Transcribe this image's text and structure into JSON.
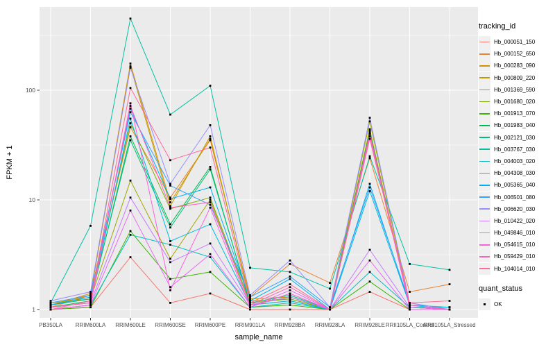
{
  "figure": {
    "background": "#ffffff",
    "panel_bg": "#ebebeb",
    "grid_color": "#ffffff",
    "axis_text_color": "#4d4d4d",
    "tick_color": "#333333",
    "marker_color": "#000000"
  },
  "chart_data": {
    "type": "line",
    "title": "",
    "xlabel": "sample_name",
    "ylabel": "FPKM + 1",
    "y_scale": "log10",
    "y_ticks": [
      1,
      10,
      100
    ],
    "y_tick_labels": [
      "1",
      "10",
      "100"
    ],
    "y_minor": [
      3.162,
      31.62,
      316.2
    ],
    "ylim": [
      0.84,
      575
    ],
    "grid": true,
    "legend_position": "right",
    "legend_title": "tracking_id",
    "legend2_title": "quant_status",
    "legend2_items": [
      {
        "label": "OK",
        "shape": "black-square"
      }
    ],
    "marker": "black-square",
    "categories": [
      "PB350LA",
      "RRIM600LA",
      "RRIM600LE",
      "RRIM600SE",
      "RRIM600PE",
      "RRIM901LA",
      "RRIM928BA",
      "RRIM928LA",
      "RRIM928LE",
      "RRII105LA_Control",
      "RRII105LA_Stressed"
    ],
    "series": [
      {
        "name": "Hb_000051_150",
        "color": "#F8766D",
        "values": [
          1.0,
          1.05,
          3.0,
          1.15,
          1.4,
          1.0,
          1.0,
          1.0,
          1.45,
          1.0,
          1.0
        ]
      },
      {
        "name": "Hb_000152_650",
        "color": "#EA8331",
        "values": [
          1.05,
          1.35,
          46,
          10.5,
          35,
          1.3,
          2.6,
          1.75,
          24,
          1.45,
          1.7
        ]
      },
      {
        "name": "Hb_000283_090",
        "color": "#D89000",
        "values": [
          1.1,
          1.4,
          175,
          9.5,
          36,
          1.25,
          1.3,
          1.0,
          43,
          1.05,
          1.0
        ]
      },
      {
        "name": "Hb_000809_220",
        "color": "#C09B00",
        "values": [
          1.1,
          1.35,
          165,
          8.8,
          38,
          1.2,
          1.25,
          1.0,
          44,
          1.05,
          1.0
        ]
      },
      {
        "name": "Hb_001369_590",
        "color": "#A3A500",
        "values": [
          1.15,
          1.25,
          15,
          2.9,
          10,
          1.1,
          1.2,
          1.0,
          52,
          1.1,
          1.0
        ]
      },
      {
        "name": "Hb_001680_020",
        "color": "#7CAE00",
        "values": [
          1.1,
          1.3,
          50,
          8.3,
          10.5,
          1.15,
          1.25,
          1.0,
          41,
          1.05,
          1.0
        ]
      },
      {
        "name": "Hb_001913_070",
        "color": "#39B600",
        "values": [
          1.0,
          1.05,
          5.2,
          1.9,
          2.2,
          1.05,
          1.1,
          1.0,
          1.8,
          1.0,
          1.0
        ]
      },
      {
        "name": "Hb_001983_040",
        "color": "#00BB4E",
        "values": [
          1.05,
          1.2,
          38,
          6.0,
          20,
          1.1,
          1.3,
          1.0,
          42,
          1.05,
          1.0
        ]
      },
      {
        "name": "Hb_002121_030",
        "color": "#00BF7D",
        "values": [
          1.1,
          1.25,
          35,
          5.6,
          19,
          1.15,
          1.35,
          1.0,
          40,
          1.1,
          1.0
        ]
      },
      {
        "name": "Hb_003767_030",
        "color": "#00C1A3",
        "values": [
          1.15,
          5.8,
          450,
          60,
          110,
          2.4,
          2.2,
          1.55,
          25,
          2.6,
          2.3
        ]
      },
      {
        "name": "Hb_004003_020",
        "color": "#00BFC4",
        "values": [
          1.0,
          1.1,
          4.8,
          3.9,
          3.0,
          1.05,
          1.15,
          1.0,
          2.2,
          1.05,
          1.05
        ]
      },
      {
        "name": "Hb_004308_030",
        "color": "#00BAE0",
        "values": [
          1.05,
          1.15,
          55,
          4.2,
          6.0,
          1.1,
          1.2,
          1.0,
          12,
          1.1,
          1.05
        ]
      },
      {
        "name": "Hb_005365_040",
        "color": "#00B0F6",
        "values": [
          1.1,
          1.3,
          68,
          10.2,
          13,
          1.2,
          1.9,
          1.0,
          14,
          1.1,
          1.0
        ]
      },
      {
        "name": "Hb_006501_080",
        "color": "#35A2FF",
        "values": [
          1.15,
          1.35,
          63,
          13.5,
          9.0,
          1.3,
          2.0,
          1.05,
          13,
          1.15,
          1.0
        ]
      },
      {
        "name": "Hb_006620_030",
        "color": "#9590FF",
        "values": [
          1.2,
          1.45,
          160,
          14,
          48,
          1.35,
          2.8,
          1.05,
          56,
          1.15,
          1.0
        ]
      },
      {
        "name": "Hb_010422_020",
        "color": "#C77CFF",
        "values": [
          1.05,
          1.15,
          10.5,
          2.7,
          4.0,
          1.1,
          1.3,
          1.0,
          3.5,
          1.05,
          1.0
        ]
      },
      {
        "name": "Hb_049846_010",
        "color": "#E76BF3",
        "values": [
          1.0,
          1.1,
          8.0,
          1.6,
          3.2,
          1.05,
          1.5,
          1.0,
          2.8,
          1.0,
          1.0
        ]
      },
      {
        "name": "Hb_054615_010",
        "color": "#FA62DB",
        "values": [
          1.0,
          1.1,
          76,
          1.5,
          8.5,
          1.05,
          1.4,
          1.0,
          38,
          1.05,
          1.0
        ]
      },
      {
        "name": "Hb_059429_010",
        "color": "#FF62BC",
        "values": [
          1.05,
          1.15,
          72,
          8.5,
          9.5,
          1.1,
          1.6,
          1.0,
          40,
          1.1,
          1.0
        ]
      },
      {
        "name": "Hb_104014_010",
        "color": "#FF6A98",
        "values": [
          1.0,
          1.2,
          105,
          23,
          30,
          1.15,
          1.7,
          1.0,
          36,
          1.15,
          1.2
        ]
      }
    ]
  }
}
